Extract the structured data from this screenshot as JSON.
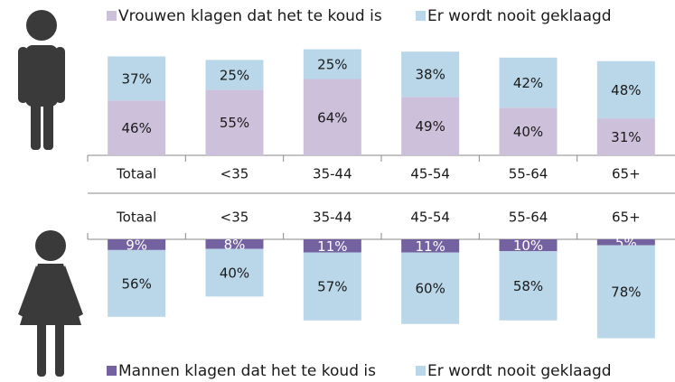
{
  "chart_data": [
    {
      "type": "bar",
      "stacked": true,
      "direction": "up",
      "legend": "top",
      "categories": [
        "Totaal",
        "<35",
        "35-44",
        "45-54",
        "55-64",
        "65+"
      ],
      "series": [
        {
          "name": "Vrouwen klagen dat het te koud is",
          "color": "#ccc0da",
          "label_color": "#1a1a1a",
          "values": [
            46,
            55,
            64,
            49,
            40,
            31
          ],
          "value_labels": [
            "46%",
            "55%",
            "64%",
            "49%",
            "40%",
            "31%"
          ]
        },
        {
          "name": "Er wordt nooit geklaagd",
          "color": "#b9d7e9",
          "label_color": "#1a1a1a",
          "values": [
            37,
            25,
            25,
            38,
            42,
            48
          ],
          "value_labels": [
            "37%",
            "25%",
            "25%",
            "38%",
            "42%",
            "48%"
          ]
        }
      ]
    },
    {
      "type": "bar",
      "stacked": true,
      "direction": "down",
      "legend": "bottom",
      "categories": [
        "Totaal",
        "<35",
        "35-44",
        "45-54",
        "55-64",
        "65+"
      ],
      "series": [
        {
          "name": "Mannen klagen dat het te koud is",
          "color": "#7462a0",
          "label_color": "#ffffff",
          "values": [
            9,
            8,
            11,
            11,
            10,
            5
          ],
          "value_labels": [
            "9%",
            "8%",
            "11%",
            "11%",
            "10%",
            "5%"
          ]
        },
        {
          "name": "Er wordt nooit geklaagd",
          "color": "#b9d7e9",
          "label_color": "#1a1a1a",
          "values": [
            56,
            40,
            57,
            60,
            58,
            78
          ],
          "value_labels": [
            "56%",
            "40%",
            "57%",
            "60%",
            "58%",
            "78%"
          ]
        }
      ]
    }
  ]
}
